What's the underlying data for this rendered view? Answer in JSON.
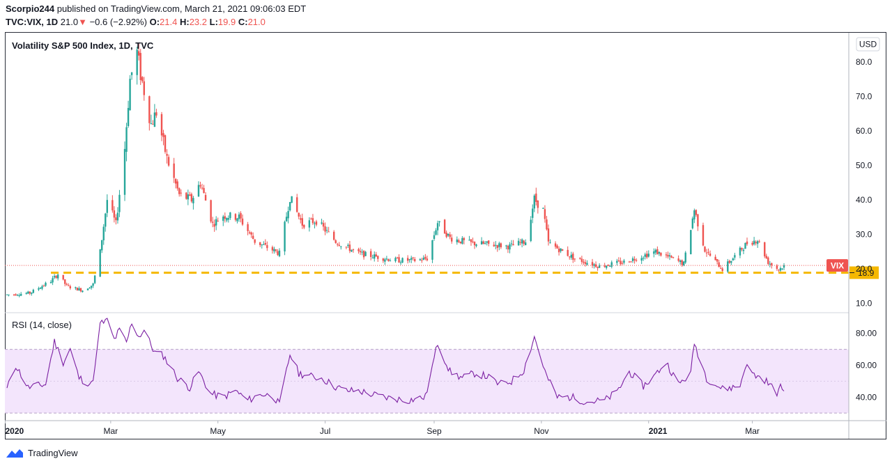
{
  "header": {
    "author": "Scorpio244",
    "published_text": "published on TradingView.com, March 21, 2021 09:06:03 EDT",
    "symbol": "TVC:VIX, 1D",
    "last": "21.0",
    "arrow": "▼",
    "change": "−0.6 (−2.92%)",
    "o_label": "O:",
    "o_val": "21.4",
    "h_label": "H:",
    "h_val": "23.2",
    "l_label": "L:",
    "l_val": "19.9",
    "c_label": "C:",
    "c_val": "21.0"
  },
  "currency": "USD",
  "colors": {
    "up": "#26a69a",
    "down": "#ef5350",
    "support": "#f5b800",
    "rsi_line": "#7b1fa2",
    "rsi_band": "#f3e5fc",
    "price_tag": "#ef5350"
  },
  "footer": {
    "brand": "TradingView"
  },
  "chart_data": [
    {
      "type": "candlestick",
      "title": "Volatility S&P 500 Index, 1D, TVC",
      "y_axis": {
        "ticks": [
          "10.0",
          "20.0",
          "30.0",
          "40.0",
          "50.0",
          "60.0",
          "70.0",
          "80.0"
        ],
        "ylim": [
          7.5,
          88.5
        ],
        "position": "right"
      },
      "x_axis": {
        "ticks": [
          "2020",
          "Mar",
          "May",
          "Jul",
          "Sep",
          "Nov",
          "2021",
          "Mar"
        ],
        "range": [
          "2020-01-02",
          "2021-03-19"
        ]
      },
      "price_label": "VIX",
      "last_price_y": 21.0,
      "support_level": 18.9,
      "support_label": "18.9",
      "ohlc_anchors": [
        [
          "2020-01-02",
          12.5
        ],
        [
          "2020-01-15",
          13.0
        ],
        [
          "2020-01-27",
          16.5
        ],
        [
          "2020-01-31",
          18.5
        ],
        [
          "2020-02-05",
          15.0
        ],
        [
          "2020-02-14",
          13.8
        ],
        [
          "2020-02-20",
          15.5
        ],
        [
          "2020-02-24",
          25.0
        ],
        [
          "2020-02-28",
          40.0
        ],
        [
          "2020-03-04",
          33.0
        ],
        [
          "2020-03-09",
          55.0
        ],
        [
          "2020-03-12",
          75.0
        ],
        [
          "2020-03-16",
          82.7
        ],
        [
          "2020-03-18",
          76.5
        ],
        [
          "2020-03-24",
          62.0
        ],
        [
          "2020-03-27",
          65.5
        ],
        [
          "2020-04-02",
          52.0
        ],
        [
          "2020-04-09",
          41.5
        ],
        [
          "2020-04-16",
          40.0
        ],
        [
          "2020-04-21",
          45.0
        ],
        [
          "2020-04-28",
          33.0
        ],
        [
          "2020-05-04",
          35.5
        ],
        [
          "2020-05-13",
          35.0
        ],
        [
          "2020-05-22",
          28.0
        ],
        [
          "2020-06-05",
          24.5
        ],
        [
          "2020-06-11",
          40.8
        ],
        [
          "2020-06-18",
          33.0
        ],
        [
          "2020-06-26",
          34.0
        ],
        [
          "2020-07-07",
          28.0
        ],
        [
          "2020-07-20",
          24.5
        ],
        [
          "2020-08-10",
          22.5
        ],
        [
          "2020-08-21",
          22.5
        ],
        [
          "2020-08-28",
          23.0
        ],
        [
          "2020-09-03",
          33.5
        ],
        [
          "2020-09-10",
          29.0
        ],
        [
          "2020-09-21",
          27.5
        ],
        [
          "2020-10-05",
          27.0
        ],
        [
          "2020-10-14",
          26.5
        ],
        [
          "2020-10-23",
          28.0
        ],
        [
          "2020-10-28",
          40.3
        ],
        [
          "2020-11-02",
          37.0
        ],
        [
          "2020-11-05",
          27.5
        ],
        [
          "2020-11-20",
          23.0
        ],
        [
          "2020-12-04",
          20.8
        ],
        [
          "2020-12-18",
          22.0
        ],
        [
          "2021-01-05",
          25.0
        ],
        [
          "2021-01-21",
          21.5
        ],
        [
          "2021-01-27",
          37.2
        ],
        [
          "2021-02-02",
          25.5
        ],
        [
          "2021-02-12",
          19.9
        ],
        [
          "2021-02-26",
          27.5
        ],
        [
          "2021-03-04",
          28.5
        ],
        [
          "2021-03-10",
          22.0
        ],
        [
          "2021-03-16",
          19.8
        ],
        [
          "2021-03-19",
          21.0
        ]
      ]
    },
    {
      "type": "line",
      "title": "RSI (14, close)",
      "y_axis": {
        "ticks": [
          "40.00",
          "60.00",
          "80.00"
        ],
        "ylim": [
          27,
          93
        ],
        "position": "right"
      },
      "band": [
        30,
        70
      ],
      "series": [
        {
          "values": [
            [
              "2020-01-02",
              45
            ],
            [
              "2020-01-07",
              60
            ],
            [
              "2020-01-14",
              46
            ],
            [
              "2020-01-24",
              48
            ],
            [
              "2020-01-29",
              75
            ],
            [
              "2020-02-03",
              62
            ],
            [
              "2020-02-07",
              70
            ],
            [
              "2020-02-12",
              52
            ],
            [
              "2020-02-19",
              48
            ],
            [
              "2020-02-21",
              57
            ],
            [
              "2020-02-24",
              86
            ],
            [
              "2020-02-28",
              88
            ],
            [
              "2020-03-03",
              76
            ],
            [
              "2020-03-06",
              82
            ],
            [
              "2020-03-10",
              74
            ],
            [
              "2020-03-13",
              87
            ],
            [
              "2020-03-17",
              78
            ],
            [
              "2020-03-20",
              82
            ],
            [
              "2020-03-26",
              68
            ],
            [
              "2020-03-31",
              66
            ],
            [
              "2020-04-08",
              52
            ],
            [
              "2020-04-15",
              46
            ],
            [
              "2020-04-20",
              56
            ],
            [
              "2020-04-27",
              42
            ],
            [
              "2020-05-04",
              40
            ],
            [
              "2020-05-11",
              44
            ],
            [
              "2020-05-18",
              38
            ],
            [
              "2020-05-26",
              42
            ],
            [
              "2020-06-02",
              40
            ],
            [
              "2020-06-05",
              35
            ],
            [
              "2020-06-11",
              67
            ],
            [
              "2020-06-16",
              55
            ],
            [
              "2020-06-23",
              53
            ],
            [
              "2020-06-29",
              52
            ],
            [
              "2020-07-06",
              47
            ],
            [
              "2020-07-13",
              44
            ],
            [
              "2020-07-20",
              44
            ],
            [
              "2020-07-27",
              42
            ],
            [
              "2020-08-03",
              40
            ],
            [
              "2020-08-17",
              38
            ],
            [
              "2020-08-27",
              40
            ],
            [
              "2020-09-03",
              74
            ],
            [
              "2020-09-10",
              56
            ],
            [
              "2020-09-17",
              52
            ],
            [
              "2020-09-24",
              55
            ],
            [
              "2020-10-01",
              53
            ],
            [
              "2020-10-08",
              48
            ],
            [
              "2020-10-15",
              50
            ],
            [
              "2020-10-22",
              57
            ],
            [
              "2020-10-28",
              78
            ],
            [
              "2020-11-04",
              53
            ],
            [
              "2020-11-10",
              40
            ],
            [
              "2020-11-18",
              40
            ],
            [
              "2020-11-27",
              37
            ],
            [
              "2020-12-07",
              38
            ],
            [
              "2020-12-14",
              43
            ],
            [
              "2020-12-21",
              56
            ],
            [
              "2020-12-29",
              47
            ],
            [
              "2021-01-04",
              53
            ],
            [
              "2021-01-11",
              62
            ],
            [
              "2021-01-18",
              48
            ],
            [
              "2021-01-25",
              55
            ],
            [
              "2021-01-27",
              74
            ],
            [
              "2021-02-03",
              52
            ],
            [
              "2021-02-12",
              45
            ],
            [
              "2021-02-22",
              47
            ],
            [
              "2021-02-25",
              60
            ],
            [
              "2021-03-02",
              54
            ],
            [
              "2021-03-08",
              51
            ],
            [
              "2021-03-15",
              43
            ],
            [
              "2021-03-17",
              46
            ],
            [
              "2021-03-19",
              45
            ]
          ]
        }
      ]
    }
  ]
}
